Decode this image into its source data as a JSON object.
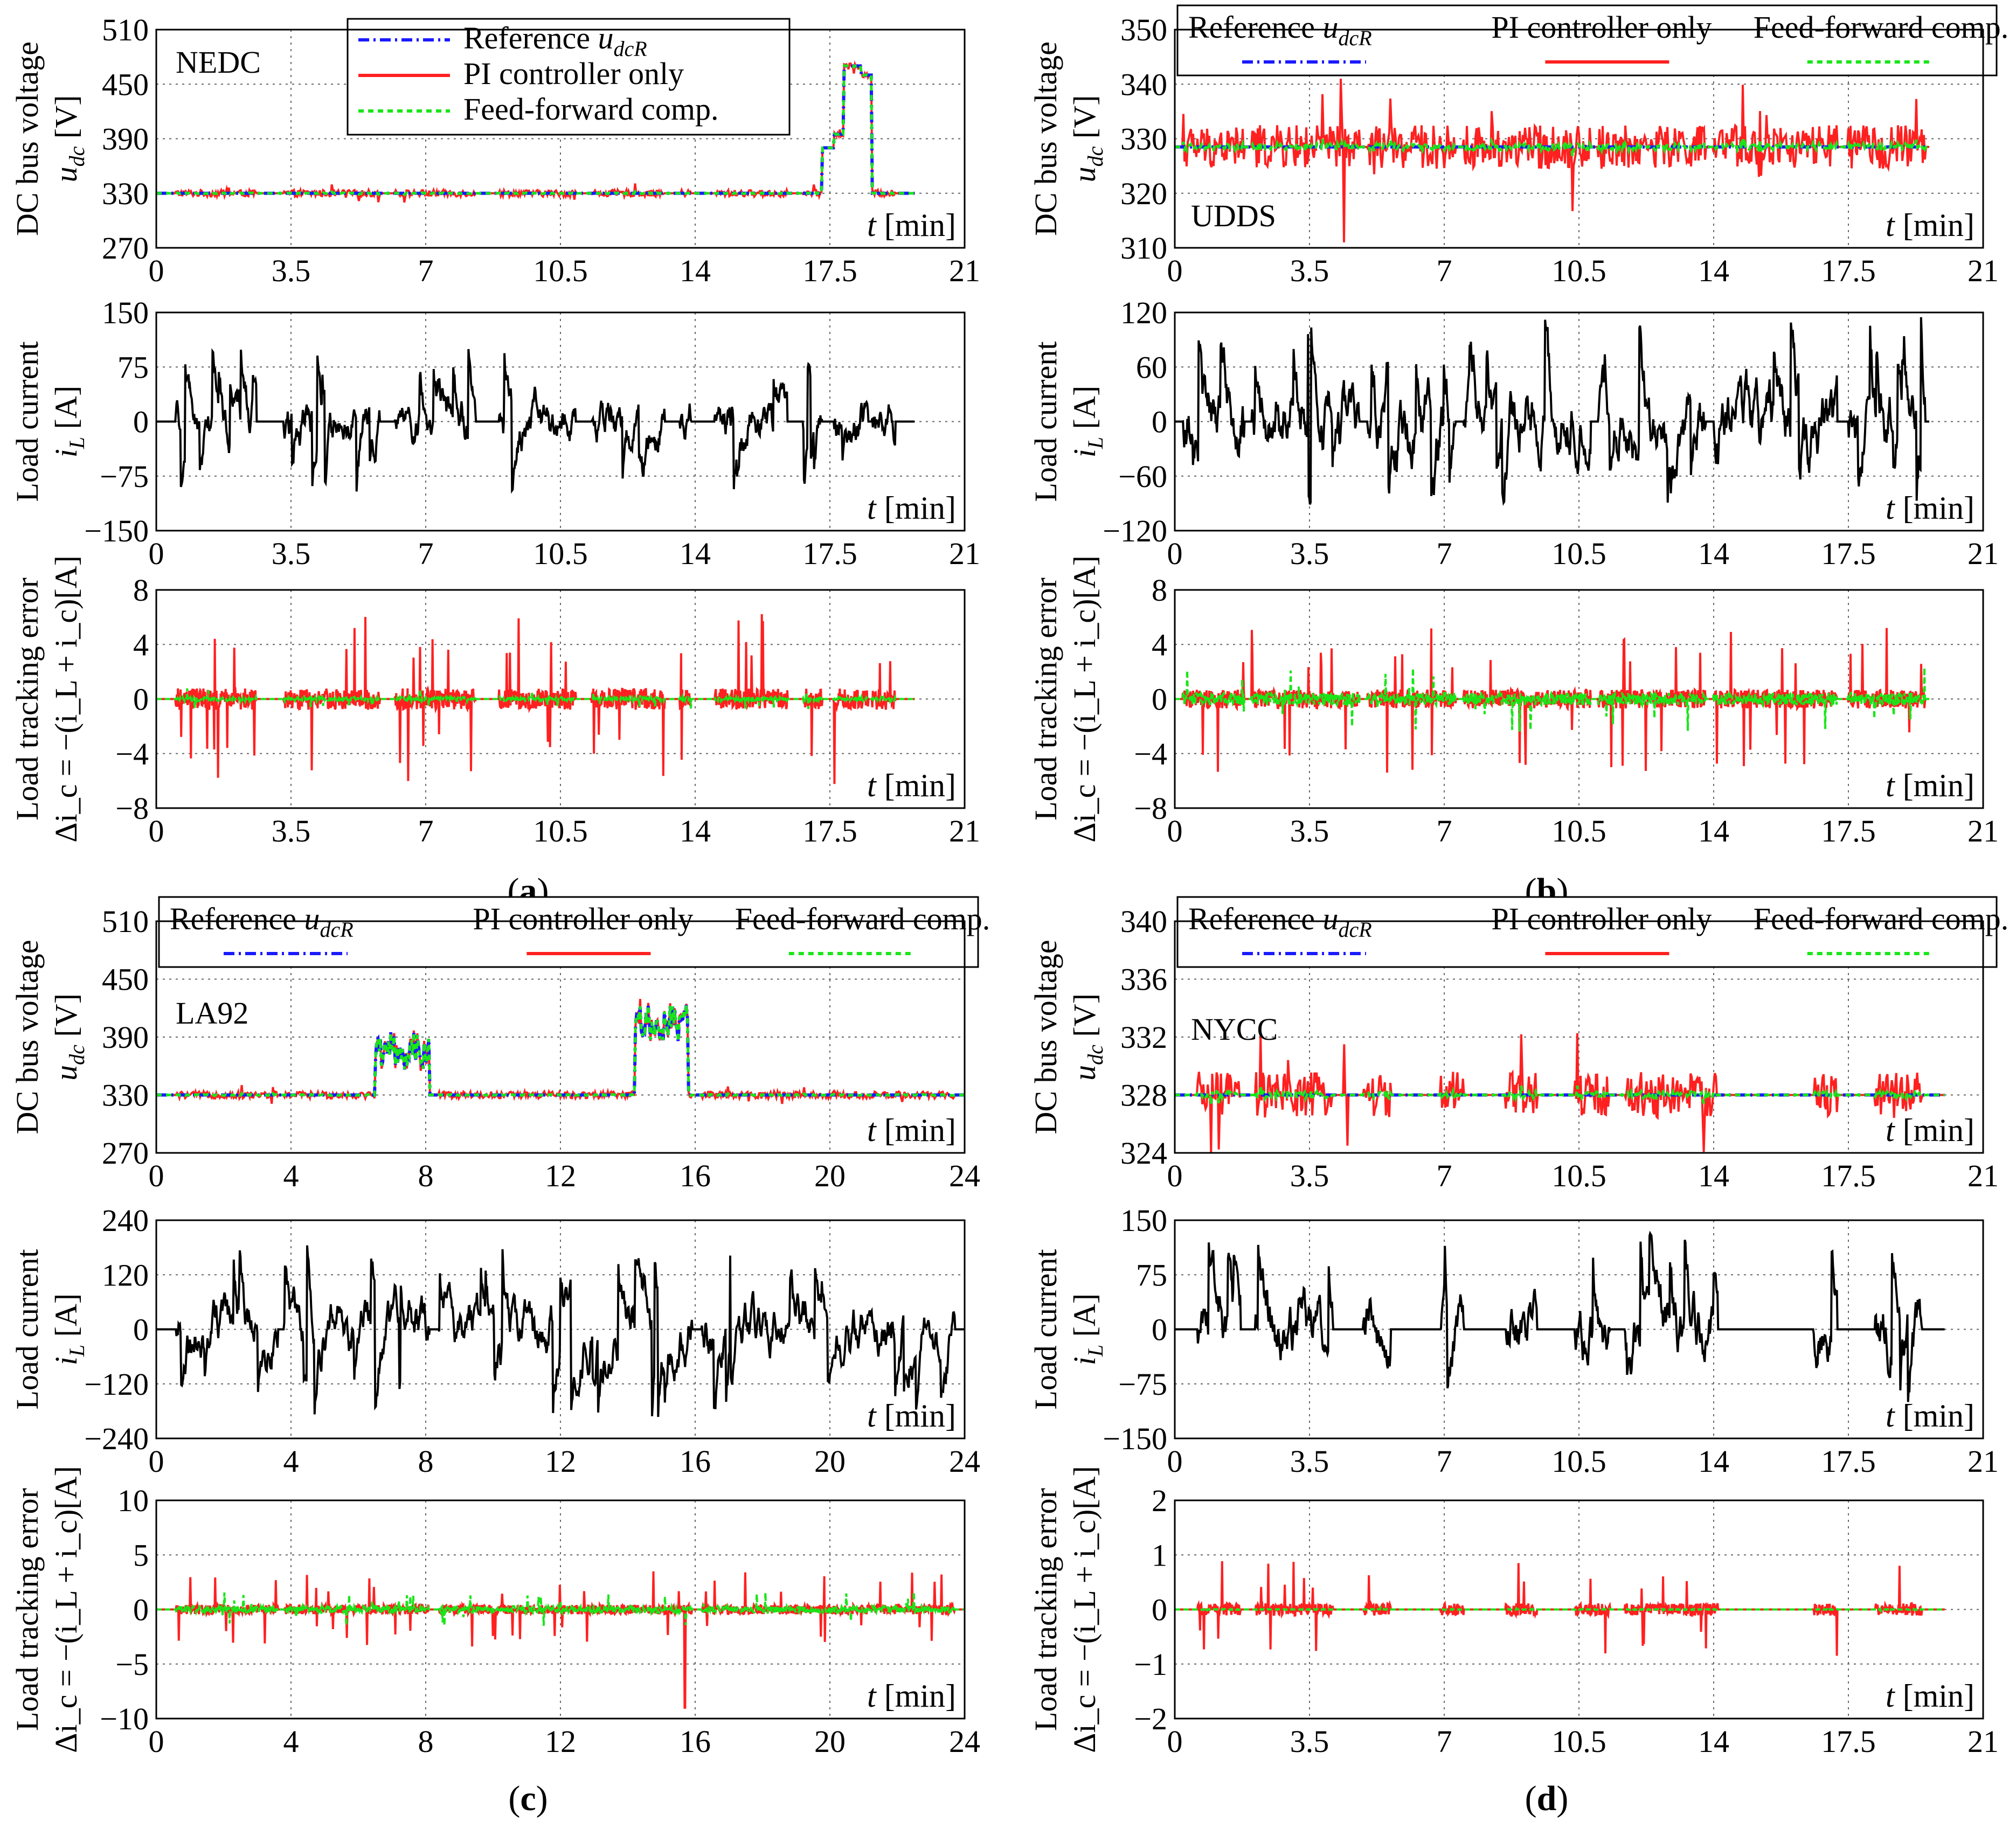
{
  "legend": {
    "reference": "Reference u_dcR",
    "reference_main": "Reference ",
    "reference_var": "u",
    "reference_sub": "dcR",
    "pi": "PI controller only",
    "ff": "Feed-forward comp."
  },
  "axis_labels": {
    "time_var": "t",
    "time_unit": " [min]",
    "voltage_line1": "DC bus voltage",
    "voltage_var": "u",
    "voltage_sub": "dc",
    "voltage_unit": " [V]",
    "current_line1": "Load current",
    "current_var": "i",
    "current_sub": "L",
    "current_unit": " [A]",
    "error_line1": "Load tracking error",
    "error_formula": "Δi_c = −(i_L + i_c)[A]"
  },
  "colors": {
    "reference": "#1a1aff",
    "pi": "#ff2020",
    "ff": "#19e619",
    "current": "#000000",
    "grid": "#666666"
  },
  "chart_data": [
    {
      "panel": "a",
      "cycle": "NEDC",
      "caption": "(a)",
      "x_ticks": [
        "0",
        "3.5",
        "7",
        "10.5",
        "14",
        "17.5",
        "21"
      ],
      "xlim": [
        0,
        21
      ],
      "t_end": 19.7,
      "voltage": {
        "type": "line",
        "ylim": [
          270,
          510
        ],
        "y_ticks": [
          "270",
          "330",
          "390",
          "450",
          "510"
        ],
        "base": 330,
        "pulses": [
          [
            17.3,
            17.6,
            380
          ],
          [
            17.6,
            17.85,
            395
          ],
          [
            17.85,
            18.3,
            470
          ],
          [
            18.3,
            18.6,
            460
          ]
        ]
      },
      "current": {
        "type": "line",
        "ylim": [
          -150,
          150
        ],
        "y_ticks": [
          "-150",
          "-75",
          "0",
          "75",
          "150"
        ],
        "peak_max": 100,
        "peak_min": -100
      },
      "error": {
        "type": "line",
        "ylim": [
          -8,
          8
        ],
        "y_ticks": [
          "-8",
          "-4",
          "0",
          "4",
          "8"
        ],
        "pi_peak": 6.3,
        "ff_peak": 1.0
      }
    },
    {
      "panel": "b",
      "cycle": "UDDS",
      "caption": "(b)",
      "x_ticks": [
        "0",
        "3.5",
        "7",
        "10.5",
        "14",
        "17.5",
        "21"
      ],
      "xlim": [
        0,
        21
      ],
      "t_end": 19.6,
      "voltage": {
        "type": "line",
        "ylim": [
          310,
          350
        ],
        "y_ticks": [
          "310",
          "320",
          "330",
          "340",
          "350"
        ],
        "base": 328.5,
        "pi_peak_max": 341,
        "pi_peak_min": 311
      },
      "current": {
        "type": "line",
        "ylim": [
          -120,
          120
        ],
        "y_ticks": [
          "-120",
          "-60",
          "0",
          "60",
          "120"
        ],
        "peak_max": 118,
        "peak_min": -92
      },
      "error": {
        "type": "line",
        "ylim": [
          -8,
          8
        ],
        "y_ticks": [
          "-8",
          "-4",
          "0",
          "4",
          "8"
        ],
        "pi_peak": 5.5,
        "ff_peak": 3.0
      }
    },
    {
      "panel": "c",
      "cycle": "LA92",
      "caption": "(c)",
      "x_ticks": [
        "0",
        "4",
        "8",
        "12",
        "16",
        "20",
        "24"
      ],
      "xlim": [
        0,
        24
      ],
      "t_end": 24,
      "voltage": {
        "type": "line",
        "ylim": [
          270,
          510
        ],
        "y_ticks": [
          "270",
          "330",
          "390",
          "450",
          "510"
        ],
        "base": 330,
        "pulses": [
          [
            6.5,
            8.1,
            375
          ],
          [
            14.2,
            15.8,
            405
          ]
        ]
      },
      "current": {
        "type": "line",
        "ylim": [
          -240,
          240
        ],
        "y_ticks": [
          "-240",
          "-120",
          "0",
          "120",
          "240"
        ],
        "peak_max": 185,
        "peak_min": -195
      },
      "error": {
        "type": "line",
        "ylim": [
          -10,
          10
        ],
        "y_ticks": [
          "-10",
          "-5",
          "0",
          "5",
          "10"
        ],
        "pi_peak": 3.5,
        "pi_min": -9,
        "ff_peak": 2.0
      }
    },
    {
      "panel": "d",
      "cycle": "NYCC",
      "caption": "(d)",
      "x_ticks": [
        "0",
        "3.5",
        "7",
        "10.5",
        "14",
        "17.5",
        "21"
      ],
      "xlim": [
        0,
        21
      ],
      "t_end": 20,
      "voltage": {
        "type": "line",
        "ylim": [
          324,
          340
        ],
        "y_ticks": [
          "324",
          "328",
          "332",
          "336",
          "340"
        ],
        "base": 328,
        "pi_peak_max": 331.5,
        "pi_peak_min": 324.5
      },
      "current": {
        "type": "line",
        "ylim": [
          -150,
          150
        ],
        "y_ticks": [
          "-150",
          "-75",
          "0",
          "75",
          "150"
        ],
        "peak_max": 140,
        "peak_min": -105
      },
      "error": {
        "type": "line",
        "ylim": [
          -2,
          2
        ],
        "y_ticks": [
          "-2",
          "-1",
          "0",
          "1",
          "2"
        ],
        "pi_peak": 0.9,
        "ff_peak": 0.05
      }
    }
  ]
}
